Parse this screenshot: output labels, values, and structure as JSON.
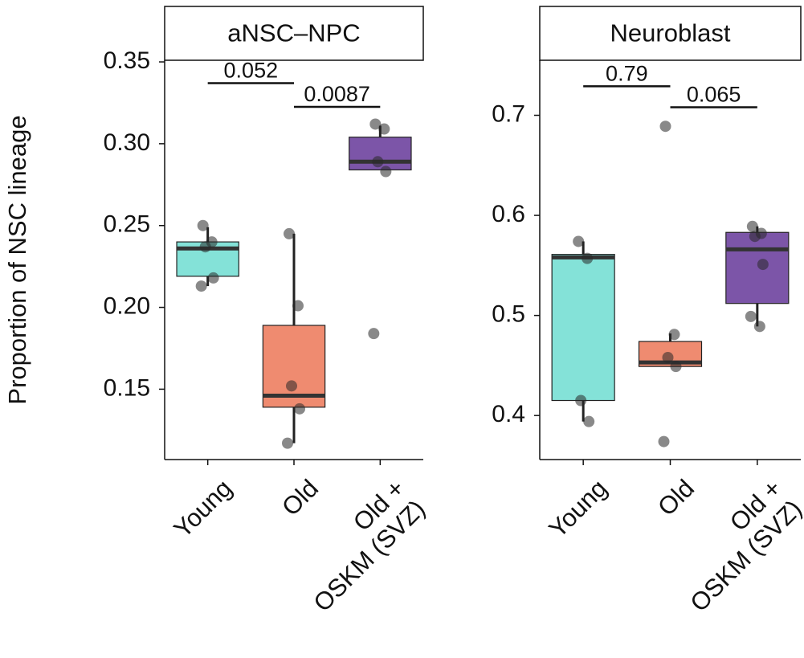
{
  "chart_data": [
    {
      "type": "box",
      "title": "aNSC–NPC",
      "ylabel": "Proportion of NSC lineage",
      "categories": [
        "Young",
        "Old",
        "Old +\nOSKM (SVZ)"
      ],
      "ylim": [
        0.107,
        0.351
      ],
      "yticks": [
        0.15,
        {
          "value": 0.2,
          "label": "0.20"
        },
        0.25,
        {
          "value": 0.3,
          "label": "0.30"
        },
        0.35
      ],
      "boxes": [
        {
          "color": "#84e2d8",
          "q1": 0.219,
          "median": 0.236,
          "q3": 0.24,
          "whisker_low": 0.213,
          "whisker_high": 0.249,
          "points": [
            0.25,
            0.24,
            0.237,
            0.218,
            0.213
          ]
        },
        {
          "color": "#ef8b70",
          "q1": 0.139,
          "median": 0.146,
          "q3": 0.189,
          "whisker_low": 0.117,
          "whisker_high": 0.245,
          "points": [
            0.245,
            0.201,
            0.152,
            0.138,
            0.117
          ]
        },
        {
          "color": "#7c55a8",
          "q1": 0.284,
          "median": 0.289,
          "q3": 0.304,
          "whisker_low": 0.284,
          "whisker_high": 0.311,
          "points": [
            0.312,
            0.309,
            0.289,
            0.283,
            0.184
          ]
        }
      ],
      "brackets": [
        {
          "label": "0.052",
          "y": 0.337
        },
        {
          "label": "0.0087",
          "y": 0.3225
        }
      ]
    },
    {
      "type": "box",
      "title": "Neuroblast",
      "categories": [
        "Young",
        "Old",
        "Old +\nOSKM (SVZ)"
      ],
      "ylim": [
        0.356,
        0.755
      ],
      "yticks": [
        0.4,
        0.5,
        0.6,
        0.7
      ],
      "boxes": [
        {
          "color": "#84e2d8",
          "q1": 0.415,
          "median": 0.558,
          "q3": 0.561,
          "whisker_low": 0.394,
          "whisker_high": 0.574,
          "points": [
            0.574,
            0.557,
            0.415,
            0.394
          ]
        },
        {
          "color": "#ef8b70",
          "q1": 0.449,
          "median": 0.453,
          "q3": 0.474,
          "whisker_low": 0.449,
          "whisker_high": 0.482,
          "points": [
            0.689,
            0.481,
            0.458,
            0.449,
            0.374
          ]
        },
        {
          "color": "#7c55a8",
          "q1": 0.512,
          "median": 0.566,
          "q3": 0.583,
          "whisker_low": 0.489,
          "whisker_high": 0.589,
          "points": [
            0.589,
            0.582,
            0.579,
            0.551,
            0.499,
            0.489
          ]
        }
      ],
      "brackets": [
        {
          "label": "0.79",
          "y": 0.729
        },
        {
          "label": "0.065",
          "y": 0.708
        }
      ]
    }
  ]
}
